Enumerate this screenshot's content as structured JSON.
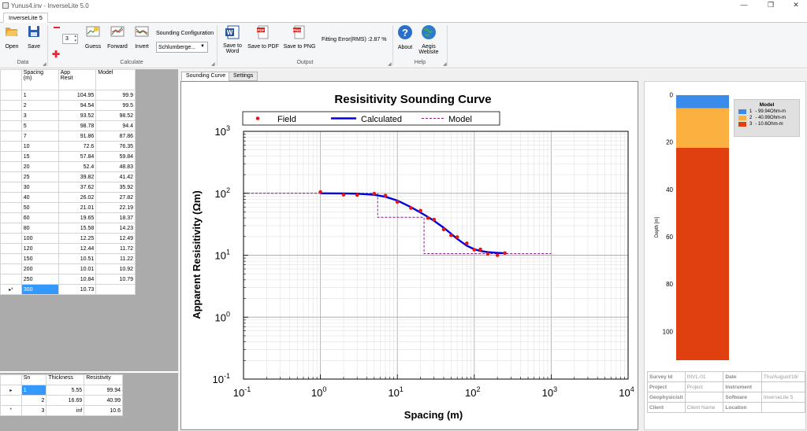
{
  "window": {
    "title": "Yunus4.inv - InverseLite 5.0",
    "minimize": "—",
    "maximize": "❐",
    "close": "✕"
  },
  "app_tab": "InverseLite 5",
  "ribbon": {
    "open": "Open",
    "save": "Save",
    "group_data": "Data",
    "layers_value": "3",
    "guess": "Guess",
    "forward": "Forward",
    "invert": "Invert",
    "sounding_config_label": "Sounding Configuration",
    "sounding_config_value": "Schlumberge...",
    "group_calculate": "Calculate",
    "save_to_word": [
      "Save to",
      "Word"
    ],
    "save_to_pdf": "Save to PDF",
    "save_to_png": "Save to PNG",
    "fitting_error": "Fitting Error(RMS) :2.87 %",
    "group_output": "Output",
    "about": "About",
    "aegis": [
      "Aegis",
      "Website"
    ],
    "group_help": "Help"
  },
  "data_table": {
    "headers": [
      [
        "Spacing",
        "(m)"
      ],
      [
        "App",
        "Resit"
      ],
      [
        "Model"
      ]
    ],
    "rows": [
      [
        "1",
        "104.95",
        "99.9"
      ],
      [
        "2",
        "94.54",
        "99.5"
      ],
      [
        "3",
        "93.52",
        "98.52"
      ],
      [
        "5",
        "98.78",
        "94.4"
      ],
      [
        "7",
        "91.86",
        "87.86"
      ],
      [
        "10",
        "72.6",
        "76.35"
      ],
      [
        "15",
        "57.84",
        "59.84"
      ],
      [
        "20",
        "52.4",
        "48.83"
      ],
      [
        "25",
        "39.82",
        "41.42"
      ],
      [
        "30",
        "37.62",
        "35.92"
      ],
      [
        "40",
        "26.02",
        "27.82"
      ],
      [
        "50",
        "21.01",
        "22.19"
      ],
      [
        "60",
        "19.65",
        "18.37"
      ],
      [
        "80",
        "15.58",
        "14.23"
      ],
      [
        "100",
        "12.25",
        "12.49"
      ],
      [
        "120",
        "12.44",
        "11.72"
      ],
      [
        "150",
        "10.51",
        "11.22"
      ],
      [
        "200",
        "10.01",
        "10.92"
      ],
      [
        "250",
        "10.84",
        "10.79"
      ],
      [
        "300",
        "10.73",
        ""
      ]
    ],
    "row_marker": "▸*"
  },
  "layer_table": {
    "headers": [
      "Sn",
      "Thickness",
      "Resistivity"
    ],
    "rows": [
      [
        "1",
        "5.55",
        "99.94"
      ],
      [
        "2",
        "16.69",
        "40.99"
      ],
      [
        "3",
        "inf",
        "10.6"
      ]
    ],
    "markers": [
      "▸",
      "",
      "*"
    ]
  },
  "doc_tabs": [
    "Sounding Curve",
    "Settings"
  ],
  "chart_data": {
    "type": "line",
    "title": "Resisitivity Sounding Curve",
    "xlabel": "Spacing (m)",
    "ylabel": "Apparent Resisitivity (Ωm)",
    "xscale": "log",
    "yscale": "log",
    "xlim": [
      0.1,
      10000
    ],
    "ylim": [
      0.1,
      1000
    ],
    "grid": true,
    "legend_position": "top",
    "x_tick_labels": [
      {
        "base": "10",
        "exp": "-1"
      },
      {
        "base": "10",
        "exp": "0"
      },
      {
        "base": "10",
        "exp": "1"
      },
      {
        "base": "10",
        "exp": "2"
      },
      {
        "base": "10",
        "exp": "3"
      },
      {
        "base": "10",
        "exp": "4"
      }
    ],
    "y_tick_labels": [
      {
        "base": "10",
        "exp": "-1"
      },
      {
        "base": "10",
        "exp": "0"
      },
      {
        "base": "10",
        "exp": "1"
      },
      {
        "base": "10",
        "exp": "2"
      },
      {
        "base": "10",
        "exp": "3"
      }
    ],
    "series": [
      {
        "name": "Field",
        "style": "markers",
        "color": "#e8141a",
        "x": [
          1,
          2,
          3,
          5,
          7,
          10,
          15,
          20,
          25,
          30,
          40,
          50,
          60,
          80,
          100,
          120,
          150,
          200,
          250
        ],
        "y": [
          104.95,
          94.54,
          93.52,
          98.78,
          91.86,
          72.6,
          57.84,
          52.4,
          39.82,
          37.62,
          26.02,
          21.01,
          19.65,
          15.58,
          12.25,
          12.44,
          10.51,
          10.01,
          10.84
        ]
      },
      {
        "name": "Calculated",
        "style": "solid",
        "color": "#0000dd",
        "x": [
          1,
          2,
          3,
          5,
          7,
          10,
          15,
          20,
          25,
          30,
          40,
          50,
          60,
          80,
          100,
          120,
          150,
          200,
          250
        ],
        "y": [
          99.9,
          99.5,
          98.52,
          94.4,
          87.86,
          76.35,
          59.84,
          48.83,
          41.42,
          35.92,
          27.82,
          22.19,
          18.37,
          14.23,
          12.49,
          11.72,
          11.22,
          10.92,
          10.79
        ]
      },
      {
        "name": "Model",
        "style": "dashed",
        "color": "#8b1a8b",
        "x": [
          0.1,
          5.55,
          5.55,
          22.24,
          22.24,
          1000
        ],
        "y": [
          99.94,
          99.94,
          40.99,
          40.99,
          10.6,
          10.6
        ]
      }
    ]
  },
  "model_panel": {
    "legend_title": "Model",
    "depth_label": "Depth [m]",
    "depth_ticks": [
      "0",
      "20",
      "40",
      "60",
      "80",
      "100"
    ],
    "max_depth": 112,
    "layers": [
      {
        "label": "1",
        "value": "- 99.94Ohm-m",
        "color": "#3b8beb",
        "top": 0,
        "bottom": 5.55
      },
      {
        "label": "2",
        "value": "- 40.99Ohm-m",
        "color": "#fbb040",
        "top": 5.55,
        "bottom": 22.24
      },
      {
        "label": "3",
        "value": "- 10.6Ohm-m",
        "color": "#e04010",
        "top": 22.24,
        "bottom": 112
      }
    ]
  },
  "info_table": {
    "rows": [
      [
        "Survey Id",
        "INVL-01",
        "Date",
        "Thu/August/16/"
      ],
      [
        "Project",
        "Project",
        "Instrument",
        ""
      ],
      [
        "Geophysicisit",
        "",
        "Software",
        "InverseLite 5"
      ],
      [
        "Client",
        "Client Name",
        "Location",
        ""
      ]
    ]
  }
}
